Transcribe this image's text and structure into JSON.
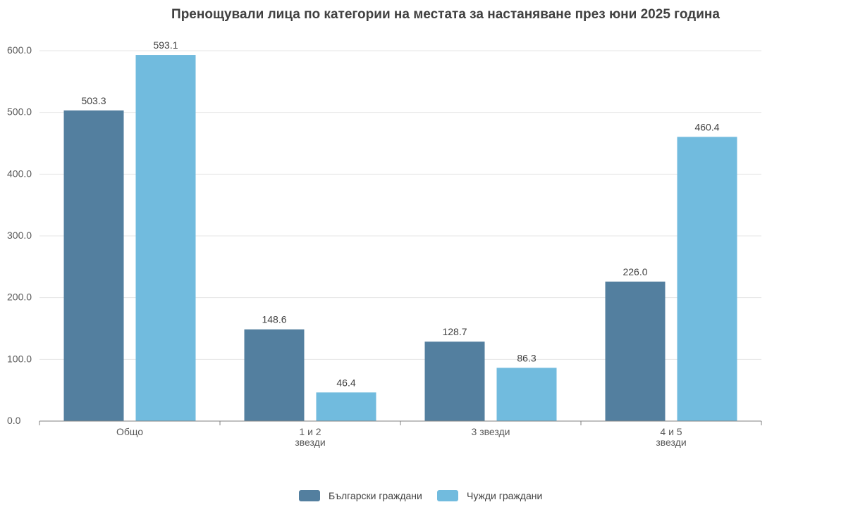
{
  "chart_data": {
    "type": "bar",
    "title": "Пренощували лица по категории на местата за настаняване през юни 2025 година",
    "categories": [
      [
        "Общо"
      ],
      [
        "1 и 2",
        "звезди"
      ],
      [
        "3 звезди"
      ],
      [
        "4 и 5",
        "звезди"
      ]
    ],
    "series": [
      {
        "name": "Български граждани",
        "color": "#537f9f",
        "values": [
          503.3,
          148.6,
          128.7,
          226.0
        ],
        "labels": [
          "503.3",
          "148.6",
          "128.7",
          "226.0"
        ]
      },
      {
        "name": "Чужди граждани",
        "color": "#71bbde",
        "values": [
          593.1,
          46.4,
          86.3,
          460.4
        ],
        "labels": [
          "593.1",
          "46.4",
          "86.3",
          "460.4"
        ]
      }
    ],
    "ylim": [
      0,
      600
    ],
    "yticks": [
      0,
      100,
      200,
      300,
      400,
      500,
      600
    ],
    "ytick_labels": [
      "0.0",
      "100.0",
      "200.0",
      "300.0",
      "400.0",
      "500.0",
      "600.0"
    ],
    "xlabel": "",
    "ylabel": "",
    "grid": true,
    "legend_position": "bottom"
  }
}
